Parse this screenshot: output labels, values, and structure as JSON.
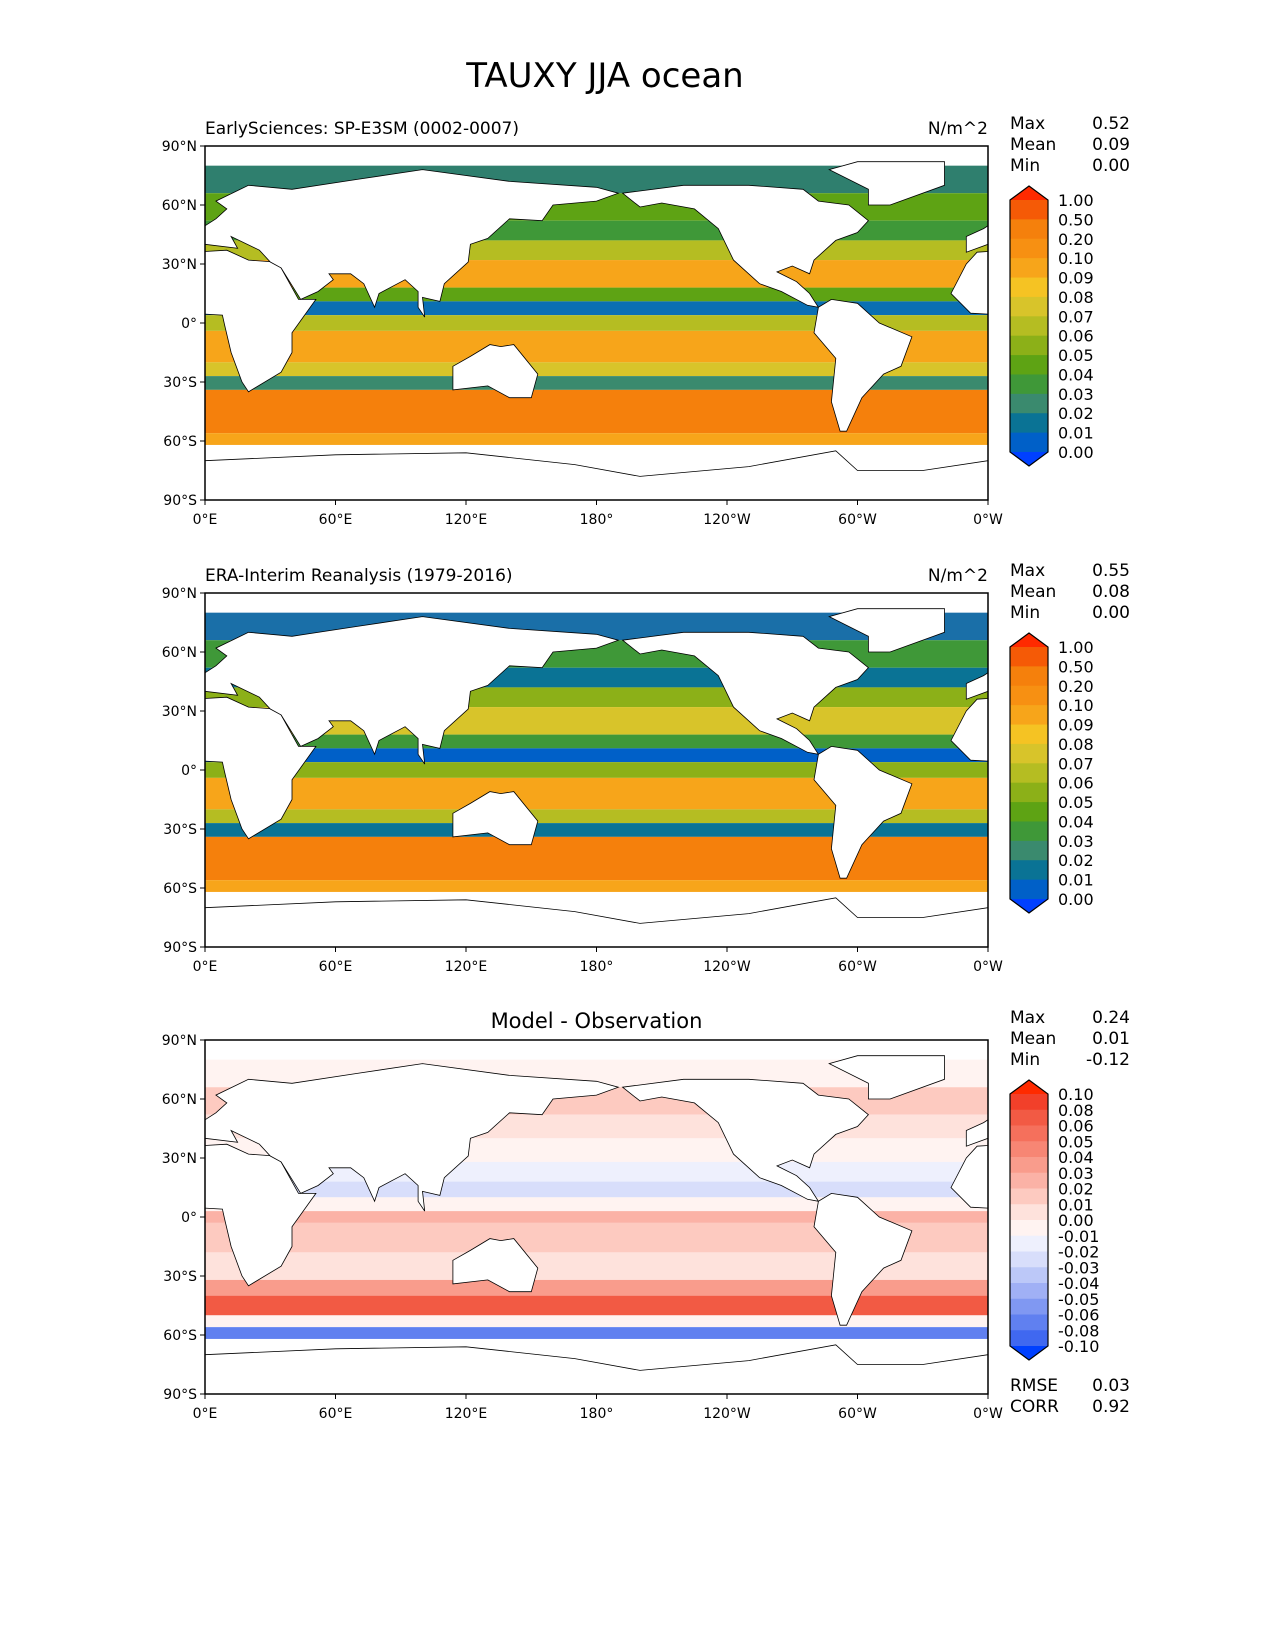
{
  "title": "TAUXY JJA ocean",
  "x_ticks": [
    "0°E",
    "60°E",
    "120°E",
    "180°",
    "120°W",
    "60°W",
    "0°W"
  ],
  "y_ticks": [
    "90°N",
    "60°N",
    "30°N",
    "0°",
    "30°S",
    "60°S",
    "90°S"
  ],
  "panels": [
    {
      "left_title": "EarlySciences: SP-E3SM (0002-0007)",
      "center_title": "",
      "units": "N/m^2",
      "stats": [
        [
          "Max",
          "0.52"
        ],
        [
          "Mean",
          "0.09"
        ],
        [
          "Min",
          "0.00"
        ]
      ],
      "colorbar_labels": [
        "1.00",
        "0.50",
        "0.20",
        "0.10",
        "0.09",
        "0.08",
        "0.07",
        "0.06",
        "0.05",
        "0.04",
        "0.03",
        "0.02",
        "0.01",
        "0.00"
      ],
      "colorbar_colors": [
        "#ff2a00",
        "#f55a06",
        "#f5800c",
        "#f79012",
        "#f7a51a",
        "#f5c323",
        "#d8c42a",
        "#b5bd22",
        "#8cb018",
        "#5ea314",
        "#3f9838",
        "#3a8a6e",
        "#0a7395",
        "#0060c8",
        "#0040ff"
      ],
      "bands": [
        [
          80,
          66,
          "#2f7f6e"
        ],
        [
          66,
          52,
          "#5ea314"
        ],
        [
          52,
          42,
          "#3f9838"
        ],
        [
          42,
          32,
          "#b5bd22"
        ],
        [
          32,
          18,
          "#f7a51a"
        ],
        [
          18,
          11,
          "#5ea314"
        ],
        [
          11,
          4,
          "#0a6fb3"
        ],
        [
          4,
          -4,
          "#b5bd22"
        ],
        [
          -4,
          -20,
          "#f7a51a"
        ],
        [
          -20,
          -27,
          "#d8c42a"
        ],
        [
          -27,
          -34,
          "#3a8a6e"
        ],
        [
          -34,
          -56,
          "#f5800c"
        ],
        [
          -56,
          -62,
          "#f7a51a"
        ]
      ]
    },
    {
      "left_title": "ERA-Interim Reanalysis (1979-2016)",
      "center_title": "",
      "units": "N/m^2",
      "stats": [
        [
          "Max",
          "0.55"
        ],
        [
          "Mean",
          "0.08"
        ],
        [
          "Min",
          "0.00"
        ]
      ],
      "colorbar_labels": [
        "1.00",
        "0.50",
        "0.20",
        "0.10",
        "0.09",
        "0.08",
        "0.07",
        "0.06",
        "0.05",
        "0.04",
        "0.03",
        "0.02",
        "0.01",
        "0.00"
      ],
      "colorbar_colors": [
        "#ff2a00",
        "#f55a06",
        "#f5800c",
        "#f79012",
        "#f7a51a",
        "#f5c323",
        "#d8c42a",
        "#b5bd22",
        "#8cb018",
        "#5ea314",
        "#3f9838",
        "#3a8a6e",
        "#0a7395",
        "#0060c8",
        "#0040ff"
      ],
      "bands": [
        [
          80,
          66,
          "#1a6fa8"
        ],
        [
          66,
          52,
          "#3f9838"
        ],
        [
          52,
          42,
          "#0a7395"
        ],
        [
          42,
          32,
          "#8cb018"
        ],
        [
          32,
          18,
          "#d8c42a"
        ],
        [
          18,
          11,
          "#3f9838"
        ],
        [
          11,
          4,
          "#0060c8"
        ],
        [
          4,
          -4,
          "#8cb018"
        ],
        [
          -4,
          -20,
          "#f7a51a"
        ],
        [
          -20,
          -27,
          "#b5bd22"
        ],
        [
          -27,
          -34,
          "#0a7395"
        ],
        [
          -34,
          -56,
          "#f5800c"
        ],
        [
          -56,
          -62,
          "#f7a51a"
        ]
      ]
    },
    {
      "left_title": "",
      "center_title": "Model - Observation",
      "units": "",
      "stats": [
        [
          "Max",
          "0.24"
        ],
        [
          "Mean",
          "0.01"
        ],
        [
          "Min",
          "-0.12"
        ]
      ],
      "colorbar_labels": [
        "0.10",
        "0.08",
        "0.06",
        "0.05",
        "0.04",
        "0.03",
        "0.02",
        "0.01",
        "0.00",
        "-0.01",
        "-0.02",
        "-0.03",
        "-0.04",
        "-0.05",
        "-0.06",
        "-0.08",
        "-0.10"
      ],
      "colorbar_colors": [
        "#ff2a00",
        "#f2402a",
        "#f25a44",
        "#f5705c",
        "#f78674",
        "#f99c8c",
        "#fbb2a6",
        "#fdcac0",
        "#fee2dc",
        "#fff3f1",
        "#eef0fd",
        "#d8defb",
        "#bcc8f8",
        "#a0b0f5",
        "#8098f2",
        "#6080f0",
        "#4068f0",
        "#0040ff"
      ],
      "bands": [
        [
          80,
          66,
          "#fff3f1"
        ],
        [
          66,
          52,
          "#fdcac0"
        ],
        [
          52,
          40,
          "#fee2dc"
        ],
        [
          40,
          28,
          "#fff3f1"
        ],
        [
          28,
          18,
          "#eef0fd"
        ],
        [
          18,
          10,
          "#d8defb"
        ],
        [
          10,
          3,
          "#fff3f1"
        ],
        [
          3,
          -3,
          "#fbb2a6"
        ],
        [
          -3,
          -18,
          "#fdcac0"
        ],
        [
          -18,
          -32,
          "#fee2dc"
        ],
        [
          -32,
          -40,
          "#f99c8c"
        ],
        [
          -40,
          -50,
          "#f25a44"
        ],
        [
          -50,
          -56,
          "#fff3f1"
        ],
        [
          -56,
          -62,
          "#6080f0"
        ]
      ],
      "footer_stats": [
        [
          "RMSE",
          "0.03"
        ],
        [
          "CORR",
          "0.92"
        ]
      ]
    }
  ]
}
